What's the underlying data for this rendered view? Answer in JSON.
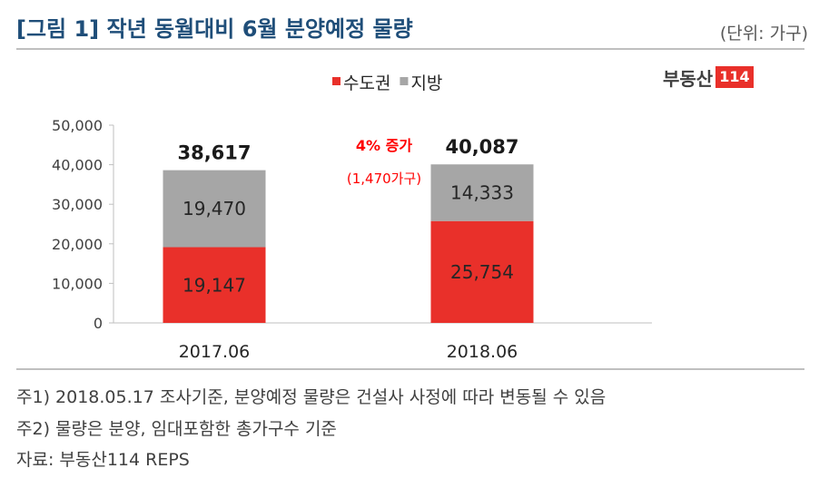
{
  "title": "[그림 1] 작년 동월대비 6월 분양예정 물량",
  "unit": "(단위: 가구)",
  "logo": {
    "text": "부동산",
    "number": "114"
  },
  "colors": {
    "capital_area": "#e9302a",
    "regions": "#a6a6a6",
    "title": "#1f4e79",
    "annotation": "#ff0000"
  },
  "chart_data": {
    "type": "bar",
    "stacked": true,
    "categories": [
      "2017.06",
      "2018.06"
    ],
    "series": [
      {
        "name": "수도권",
        "values": [
          19147,
          25754
        ],
        "labels": [
          "19,147",
          "25,754"
        ],
        "color": "#e9302a"
      },
      {
        "name": "지방",
        "values": [
          19470,
          14333
        ],
        "labels": [
          "19,470",
          "14,333"
        ],
        "color": "#a6a6a6"
      }
    ],
    "totals": [
      38617,
      40087
    ],
    "total_labels": [
      "38,617",
      "40,087"
    ],
    "ylim": [
      0,
      50000
    ],
    "yticks": [
      0,
      10000,
      20000,
      30000,
      40000,
      50000
    ],
    "ytick_labels": [
      "0",
      "10,000",
      "20,000",
      "30,000",
      "40,000",
      "50,000"
    ],
    "legend_position": "top-center",
    "annotation": {
      "line1": "4% 증가",
      "line2": "(1,470가구)"
    },
    "xlabel": "",
    "ylabel": "",
    "grid": false
  },
  "notes": [
    "주1) 2018.05.17 조사기준, 분양예정 물량은 건설사 사정에 따라 변동될 수 있음",
    "주2) 물량은 분양, 임대포함한 총가구수 기준",
    "자료: 부동산114 REPS"
  ]
}
